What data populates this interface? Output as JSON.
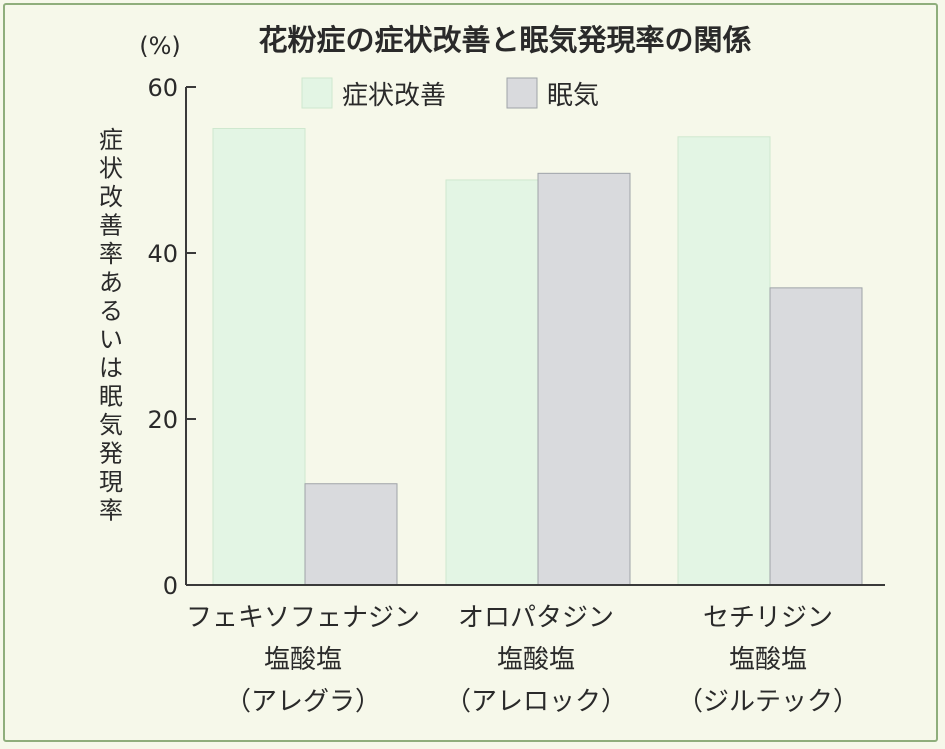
{
  "chart_data": {
    "type": "bar",
    "title": "花粉症の症状改善と眠気発現率の関係",
    "unit_label": "(%)",
    "ylabel": "症状改善率あるいは眠気発現率",
    "xlabel": "",
    "ylim": [
      0,
      60
    ],
    "yticks": [
      0,
      20,
      40,
      60
    ],
    "grid": false,
    "legend_position": "top",
    "categories": [
      [
        "フェキソフェナジン",
        "塩酸塩",
        "（アレグラ）"
      ],
      [
        "オロパタジン",
        "塩酸塩",
        "（アレロック）"
      ],
      [
        "セチリジン",
        "塩酸塩",
        "（ジルテック）"
      ]
    ],
    "series": [
      {
        "name": "症状改善",
        "values": [
          55,
          48.8,
          54
        ],
        "color": "#e3f5e4"
      },
      {
        "name": "眠気",
        "values": [
          12.2,
          49.6,
          35.8
        ],
        "color": "#d9dadd"
      }
    ]
  },
  "colors": {
    "background": "#f6f8ea",
    "frame": "#8fae7c",
    "axis": "#3a3a3a",
    "bar_stroke": "#9fa3a8"
  }
}
